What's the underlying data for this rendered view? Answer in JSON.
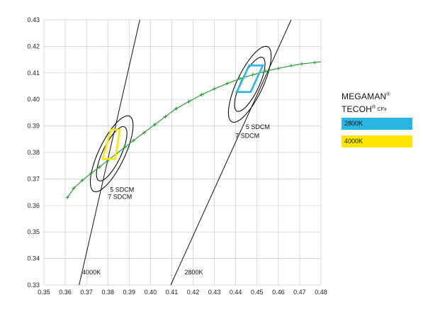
{
  "legend": {
    "brand_line1": "MEGAMAN",
    "brand_line2": "TECOH",
    "reg_mark": "®",
    "model": "CFx",
    "items": [
      {
        "label": "2800K",
        "color": "#29b6e0"
      },
      {
        "label": "4000K",
        "color": "#ffe600"
      }
    ]
  },
  "colors": {
    "locus": "#2e9b3a",
    "lines": "#111111",
    "grid": "#cccccc"
  },
  "chart_data": {
    "type": "scatter",
    "xlim": [
      0.35,
      0.48
    ],
    "ylim": [
      0.33,
      0.43
    ],
    "x_ticks": [
      "0.35",
      "0.36",
      "0.37",
      "0.38",
      "0.39",
      "0.40",
      "0.41",
      "0.42",
      "0.43",
      "0.44",
      "0.45",
      "0.46",
      "0.47",
      "0.48"
    ],
    "y_ticks": [
      "0.33",
      "0.34",
      "0.35",
      "0.36",
      "0.37",
      "0.38",
      "0.39",
      "0.40",
      "0.41",
      "0.42",
      "0.43"
    ],
    "grid": true,
    "planckian_locus": {
      "x": [
        0.361,
        0.364,
        0.368,
        0.372,
        0.376,
        0.38,
        0.384,
        0.388,
        0.392,
        0.397,
        0.402,
        0.407,
        0.412,
        0.418,
        0.424,
        0.43,
        0.436,
        0.442,
        0.448,
        0.454,
        0.46,
        0.466,
        0.471,
        0.477,
        0.48
      ],
      "y": [
        0.363,
        0.3665,
        0.3695,
        0.372,
        0.3745,
        0.377,
        0.3795,
        0.382,
        0.3845,
        0.3875,
        0.3905,
        0.3935,
        0.3965,
        0.3992,
        0.4018,
        0.404,
        0.406,
        0.4078,
        0.4093,
        0.4106,
        0.4117,
        0.4127,
        0.4134,
        0.4139,
        0.4142
      ]
    },
    "isotherms": [
      {
        "label": "4000K",
        "points": [
          [
            0.3665,
            0.33
          ],
          [
            0.395,
            0.43
          ]
        ],
        "label_at": [
          0.368,
          0.334
        ]
      },
      {
        "label": "2800K",
        "points": [
          [
            0.4095,
            0.33
          ],
          [
            0.466,
            0.43
          ]
        ],
        "label_at": [
          0.416,
          0.334
        ]
      }
    ],
    "ellipses": [
      {
        "name": "4000K 5 SDCM",
        "cx": 0.3818,
        "cy": 0.3795,
        "a": 0.0118,
        "b": 0.0041,
        "angle_deg": 58,
        "label": "5 SDCM",
        "label_at": [
          0.381,
          0.3652
        ]
      },
      {
        "name": "4000K 7 SDCM",
        "cx": 0.3818,
        "cy": 0.3795,
        "a": 0.0165,
        "b": 0.0058,
        "angle_deg": 58,
        "label": "7 SDCM",
        "label_at": [
          0.38,
          0.3625
        ]
      },
      {
        "name": "2800K 5 SDCM",
        "cx": 0.4466,
        "cy": 0.4057,
        "a": 0.0118,
        "b": 0.0041,
        "angle_deg": 58,
        "label": "5 SDCM",
        "label_at": [
          0.4447,
          0.3888
        ]
      },
      {
        "name": "2800K 7 SDCM",
        "cx": 0.4466,
        "cy": 0.4057,
        "a": 0.0165,
        "b": 0.0058,
        "angle_deg": 58,
        "label": "7 SDCM",
        "label_at": [
          0.4398,
          0.3855
        ]
      }
    ],
    "quadrangles": [
      {
        "name": "2800K",
        "color": "#29b6e0",
        "points": [
          [
            0.4463,
            0.4128
          ],
          [
            0.4527,
            0.4128
          ],
          [
            0.447,
            0.4028
          ],
          [
            0.4405,
            0.4028
          ]
        ]
      },
      {
        "name": "4000K",
        "color": "#ffe600",
        "points": [
          [
            0.3814,
            0.3885
          ],
          [
            0.3856,
            0.3885
          ],
          [
            0.3834,
            0.3775
          ],
          [
            0.3775,
            0.3775
          ]
        ]
      }
    ]
  }
}
